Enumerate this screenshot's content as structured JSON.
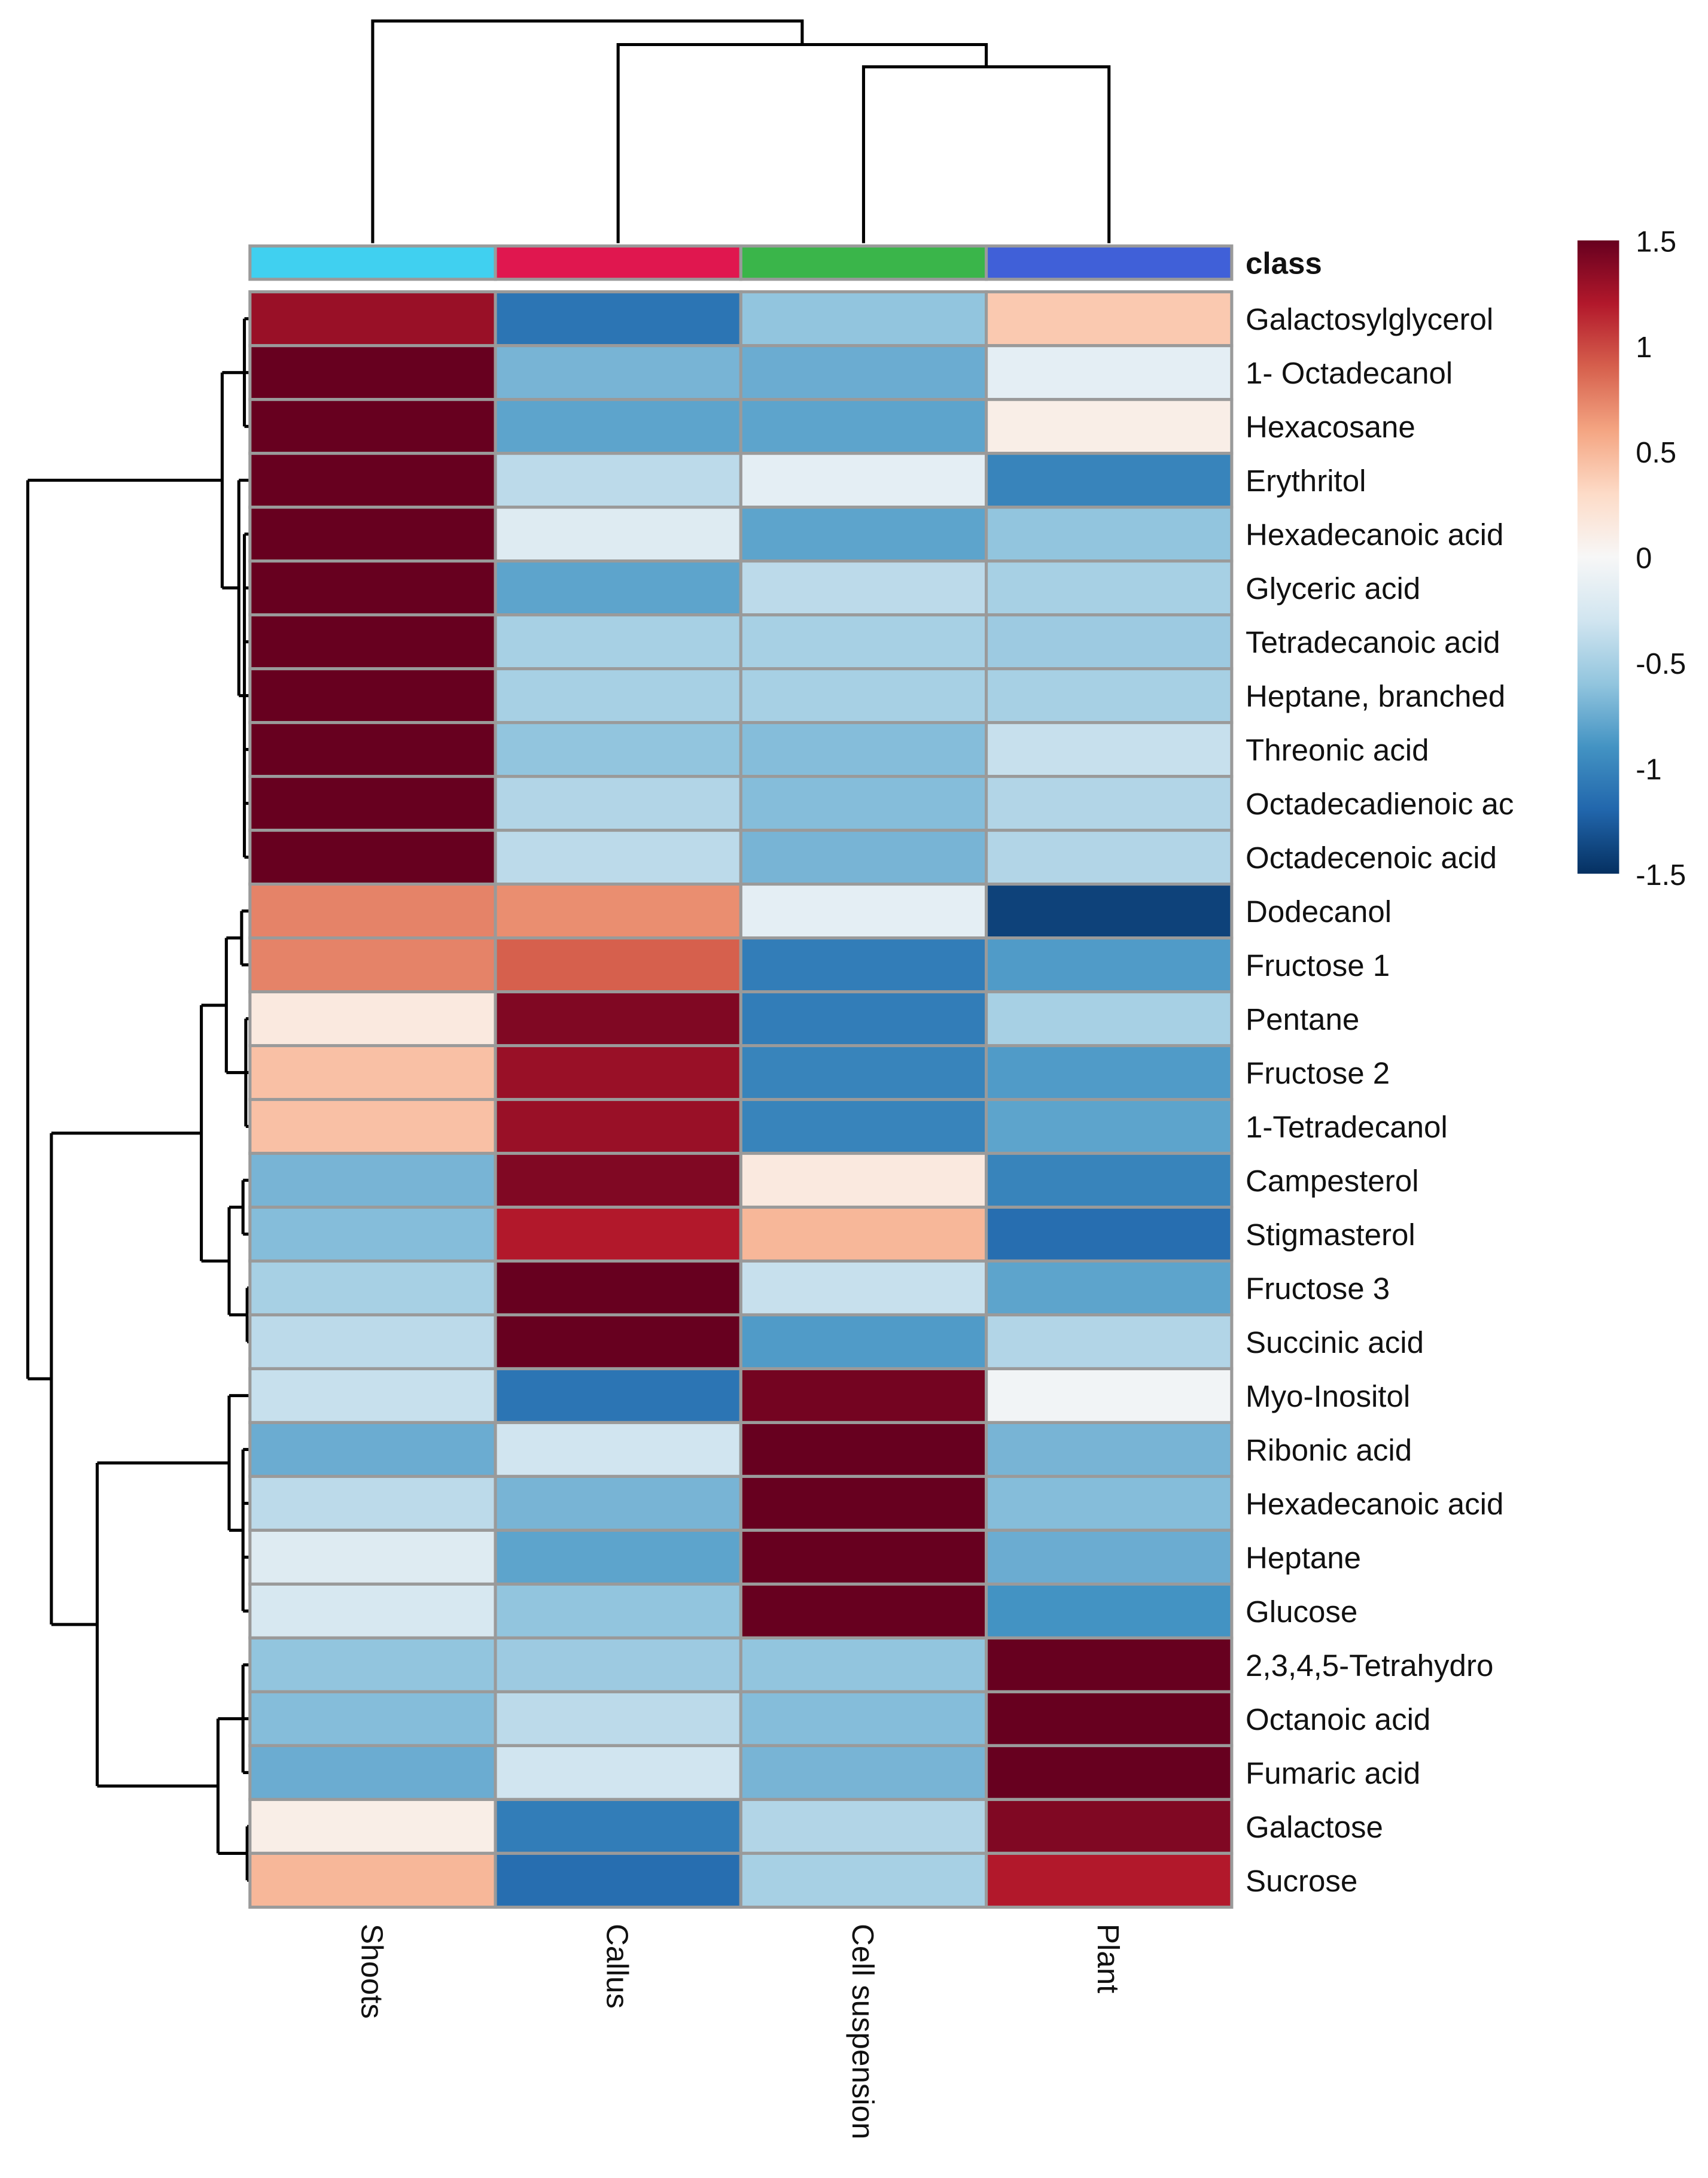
{
  "chart_data": {
    "type": "heatmap",
    "title": "",
    "columns": [
      "Shoots",
      "Callus",
      "Cell suspension",
      "Plant"
    ],
    "annotation": {
      "label": "class",
      "colors": [
        "#40d0f0",
        "#e0174f",
        "#3ab54a",
        "#4060d8"
      ]
    },
    "rows": [
      "Galactosylglycerol",
      "1- Octadecanol",
      "Hexacosane",
      "Erythritol",
      "Hexadecanoic acid",
      "Glyceric acid",
      "Tetradecanoic acid",
      " Heptane, branched",
      "Threonic acid",
      "Octadecadienoic ac",
      "Octadecenoic acid",
      "Dodecanol",
      "Fructose 1",
      "Pentane",
      "Fructose 2",
      "1-Tetradecanol",
      "Campesterol",
      "Stigmasterol",
      "Fructose 3",
      "Succinic acid",
      "Myo-Inositol",
      "Ribonic acid",
      "Hexadecanoic acid",
      "Heptane",
      "Glucose",
      "2,3,4,5-Tetrahydro",
      "Octanoic acid",
      "Fumaric acid",
      "Galactose",
      "Sucrose"
    ],
    "values": [
      [
        1.3,
        -1.1,
        -0.6,
        0.4
      ],
      [
        1.5,
        -0.7,
        -0.75,
        -0.15
      ],
      [
        1.5,
        -0.8,
        -0.8,
        0.1
      ],
      [
        1.5,
        -0.4,
        -0.15,
        -1.0
      ],
      [
        1.5,
        -0.2,
        -0.8,
        -0.6
      ],
      [
        1.5,
        -0.8,
        -0.4,
        -0.5
      ],
      [
        1.5,
        -0.5,
        -0.5,
        -0.55
      ],
      [
        1.5,
        -0.5,
        -0.5,
        -0.5
      ],
      [
        1.5,
        -0.6,
        -0.65,
        -0.35
      ],
      [
        1.5,
        -0.45,
        -0.65,
        -0.45
      ],
      [
        1.5,
        -0.4,
        -0.7,
        -0.45
      ],
      [
        0.75,
        0.7,
        -0.15,
        -1.4
      ],
      [
        0.75,
        0.9,
        -1.05,
        -0.85
      ],
      [
        0.15,
        1.4,
        -1.05,
        -0.5
      ],
      [
        0.45,
        1.3,
        -1.0,
        -0.85
      ],
      [
        0.45,
        1.3,
        -1.0,
        -0.8
      ],
      [
        -0.7,
        1.4,
        0.15,
        -1.0
      ],
      [
        -0.65,
        1.2,
        0.5,
        -1.15
      ],
      [
        -0.5,
        1.5,
        -0.35,
        -0.8
      ],
      [
        -0.4,
        1.5,
        -0.85,
        -0.45
      ],
      [
        -0.35,
        -1.1,
        1.45,
        -0.05
      ],
      [
        -0.75,
        -0.3,
        1.5,
        -0.7
      ],
      [
        -0.4,
        -0.7,
        1.5,
        -0.65
      ],
      [
        -0.2,
        -0.8,
        1.5,
        -0.75
      ],
      [
        -0.25,
        -0.6,
        1.5,
        -0.9
      ],
      [
        -0.6,
        -0.55,
        -0.6,
        1.5
      ],
      [
        -0.65,
        -0.4,
        -0.65,
        1.5
      ],
      [
        -0.75,
        -0.3,
        -0.7,
        1.5
      ],
      [
        0.1,
        -1.05,
        -0.45,
        1.4
      ],
      [
        0.5,
        -1.15,
        -0.5,
        1.2
      ]
    ],
    "color_scale": {
      "range": [
        -1.5,
        1.5
      ],
      "ticks": [
        "1.5",
        "1",
        "0.5",
        "0",
        "-0.5",
        "-1",
        "-1.5"
      ],
      "tick_values": [
        1.5,
        1,
        0.5,
        0,
        -0.5,
        -1,
        -1.5
      ],
      "low_color": "#053061",
      "mid_color": "#f7f7f7",
      "high_color": "#67001f"
    },
    "legend_position": "right"
  }
}
